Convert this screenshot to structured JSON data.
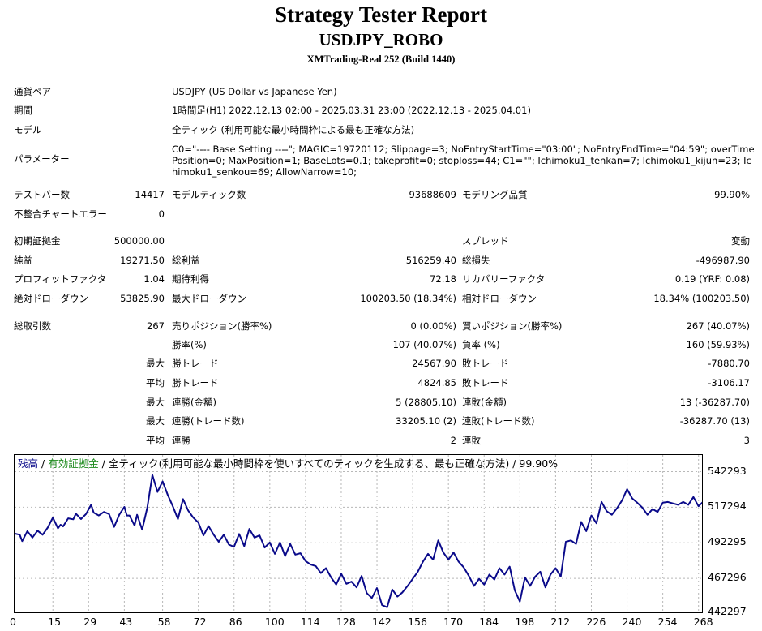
{
  "header": {
    "title": "Strategy Tester Report",
    "symbol": "USDJPY_ROBO",
    "build": "XMTrading-Real 252 (Build 1440)"
  },
  "info": {
    "pair_label": "通貨ペア",
    "pair_value": "USDJPY (US Dollar vs Japanese Yen)",
    "period_label": "期間",
    "period_value": "1時間足(H1) 2022.12.13 02:00 - 2025.03.31 23:00 (2022.12.13 - 2025.04.01)",
    "model_label": "モデル",
    "model_value": "全ティック (利用可能な最小時間枠による最も正確な方法)",
    "params_label": "パラメーター",
    "params_value": "C0=\"---- Base Setting ----\"; MAGIC=19720112; Slippage=3; NoEntryStartTime=\"03:00\"; NoEntryEndTime=\"04:59\"; overTimePosition=0; MaxPosition=1; BaseLots=0.1; takeprofit=0; stoploss=44; C1=\"\"; Ichimoku1_tenkan=7; Ichimoku1_kijun=23; Ichimoku1_senkou=69; AllowNarrow=10;"
  },
  "stats": {
    "bars_label": "テストバー数",
    "bars": "14417",
    "ticks_label": "モデルティック数",
    "ticks": "93688609",
    "quality_label": "モデリング品質",
    "quality": "99.90%",
    "mismatch_label": "不整合チャートエラー",
    "mismatch": "0",
    "deposit_label": "初期証拠金",
    "deposit": "500000.00",
    "spread_label": "スプレッド",
    "spread": "変動",
    "net_label": "純益",
    "net": "19271.50",
    "gross_profit_label": "総利益",
    "gross_profit": "516259.40",
    "gross_loss_label": "総損失",
    "gross_loss": "-496987.90",
    "pf_label": "プロフィットファクタ",
    "pf": "1.04",
    "expected_label": "期待利得",
    "expected": "72.18",
    "recovery_label": "リカバリーファクタ",
    "recovery": "0.19 (YRF: 0.08)",
    "abs_dd_label": "絶対ドローダウン",
    "abs_dd": "53825.90",
    "max_dd_label": "最大ドローダウン",
    "max_dd": "100203.50 (18.34%)",
    "rel_dd_label": "相対ドローダウン",
    "rel_dd": "18.34% (100203.50)",
    "total_label": "総取引数",
    "total": "267",
    "short_label": "売りポジション(勝率%)",
    "short": "0 (0.00%)",
    "long_label": "買いポジション(勝率%)",
    "long": "267 (40.07%)",
    "winpct_label": "勝率(%)",
    "winpct": "107 (40.07%)",
    "losspct_label": "負率 (%)",
    "losspct": "160 (59.93%)",
    "max_prefix": "最大",
    "avg_prefix": "平均",
    "largest_win_label": "勝トレード",
    "largest_win": "24567.90",
    "largest_loss_label": "敗トレード",
    "largest_loss": "-7880.70",
    "avg_win_label": "勝トレード",
    "avg_win": "4824.85",
    "avg_loss_label": "敗トレード",
    "avg_loss": "-3106.17",
    "max_cons_wins_amt_label": "連勝(金額)",
    "max_cons_wins_amt": "5 (28805.10)",
    "max_cons_losses_amt_label": "連敗(金額)",
    "max_cons_losses_amt": "13 (-36287.70)",
    "max_cons_profit_label": "連勝(トレード数)",
    "max_cons_profit": "33205.10 (2)",
    "max_cons_loss_label": "連敗(トレード数)",
    "max_cons_loss": "-36287.70 (13)",
    "avg_cons_wins_label": "連勝",
    "avg_cons_wins": "2",
    "avg_cons_losses_label": "連敗",
    "avg_cons_losses": "3"
  },
  "chart_data": {
    "type": "line",
    "legend": {
      "balance": "残高",
      "sep1": " / ",
      "equity": "有効証拠金",
      "rest": " / 全ティック(利用可能な最小時間枠を使いすべてのティックを生成する、最も正確な方法) / 99.90%"
    },
    "colors": {
      "line": "#0a0a8a",
      "balance_text": "#0a0a8a",
      "equity_text": "#1c8a1c",
      "grid": "#b8b8b8"
    },
    "ylim": [
      442297,
      554000
    ],
    "y_ticks": [
      "542293",
      "517294",
      "492295",
      "467296",
      "442297"
    ],
    "x_ticks": [
      "0",
      "15",
      "29",
      "43",
      "58",
      "72",
      "86",
      "100",
      "114",
      "128",
      "142",
      "156",
      "170",
      "184",
      "198",
      "212",
      "226",
      "240",
      "254",
      "268"
    ],
    "xlim": [
      0,
      270
    ],
    "series": [
      {
        "x": [
          0,
          2,
          3,
          5,
          7,
          9,
          11,
          13,
          15,
          17,
          18,
          19,
          21,
          23,
          24,
          26,
          28,
          30,
          31,
          33,
          35,
          37,
          39,
          41,
          43,
          44,
          45,
          47,
          48,
          50,
          52,
          54,
          56,
          58,
          60,
          62,
          64,
          66,
          68,
          70,
          72,
          74,
          76,
          78,
          80,
          82,
          84,
          86,
          88,
          90,
          92,
          94,
          96,
          98,
          100,
          102,
          104,
          106,
          108,
          110,
          112,
          114,
          116,
          118,
          120,
          122,
          124,
          126,
          128,
          130,
          132,
          134,
          136,
          138,
          140,
          142,
          144,
          146,
          148,
          150,
          152,
          154,
          156,
          158,
          160,
          162,
          164,
          166,
          168,
          170,
          172,
          174,
          176,
          178,
          180,
          182,
          184,
          186,
          188,
          190,
          192,
          194,
          196,
          198,
          200,
          202,
          204,
          206,
          208,
          210,
          212,
          214,
          216,
          218,
          220,
          222,
          224,
          226,
          228,
          230,
          232,
          234,
          236,
          238,
          240,
          242,
          244,
          246,
          248,
          250,
          252,
          254,
          256,
          258,
          260,
          262,
          264,
          266,
          268,
          270
        ],
        "values": [
          498800,
          498000,
          493500,
          500500,
          496000,
          500800,
          498000,
          503000,
          510000,
          502500,
          505000,
          503800,
          509500,
          508800,
          512800,
          509000,
          512500,
          519000,
          513500,
          511500,
          514000,
          512500,
          503500,
          512000,
          517500,
          511500,
          511500,
          504500,
          512000,
          501500,
          517000,
          540000,
          528000,
          535500,
          526000,
          518000,
          509000,
          523000,
          515000,
          510000,
          506500,
          497500,
          504000,
          498000,
          493000,
          498000,
          491000,
          489500,
          498500,
          490000,
          502000,
          496000,
          497500,
          489000,
          492500,
          484500,
          492500,
          483000,
          491500,
          484000,
          485000,
          479500,
          477000,
          476000,
          471000,
          474500,
          468000,
          463000,
          470500,
          463500,
          465000,
          461000,
          469000,
          457000,
          453500,
          460500,
          448500,
          447000,
          459500,
          454500,
          457500,
          462000,
          467000,
          472000,
          479000,
          484500,
          480500,
          494000,
          485500,
          480500,
          485500,
          479000,
          475000,
          469000,
          462000,
          467000,
          463000,
          470000,
          466500,
          474500,
          470000,
          475500,
          459000,
          451000,
          468000,
          462000,
          468500,
          472000,
          461000,
          470000,
          474500,
          468500,
          493000,
          494000,
          491500,
          507000,
          500500,
          511500,
          506000,
          521000,
          514500,
          512000,
          516500,
          522000,
          530000,
          523500,
          520500,
          517000,
          512000,
          516000,
          514000,
          520500,
          521000,
          520000,
          519000,
          521000,
          519000,
          524500,
          518000,
          521500
        ]
      }
    ]
  }
}
